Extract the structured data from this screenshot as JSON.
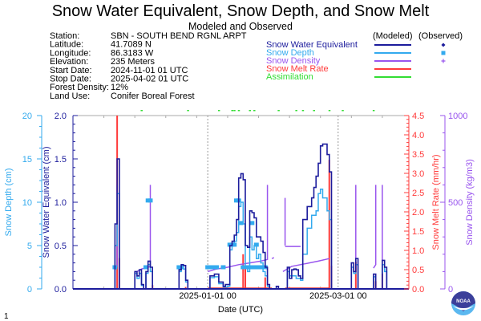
{
  "title": "Snow Water Equivalent, Snow Depth, and Snow Melt",
  "subtitle": "Modeled and Observed",
  "page_number": "1",
  "info": [
    {
      "label": "Station:",
      "value": "SBN - SOUTH BEND RGNL ARPT"
    },
    {
      "label": "Latitude:",
      "value": "41.7089 N"
    },
    {
      "label": "Longitude:",
      "value": "86.3183 W"
    },
    {
      "label": "Elevation:",
      "value": "235 Meters"
    },
    {
      "label": "Start Date:",
      "value": "2024-11-01 01 UTC"
    },
    {
      "label": "Stop Date:",
      "value": "2025-04-02 01 UTC"
    },
    {
      "label": "Forest Density:",
      "value": "12%"
    },
    {
      "label": "Land Use:",
      "value": "Conifer Boreal Forest"
    }
  ],
  "legend": {
    "modeled_header": "(Modeled)",
    "observed_header": "(Observed)",
    "items": [
      {
        "label": "Snow Water Equivalent",
        "color": "#1c1c9c",
        "observed_marker": "diamond"
      },
      {
        "label": "Snow Depth",
        "color": "#33aaee",
        "observed_marker": "square"
      },
      {
        "label": "Snow Density",
        "color": "#9955ee",
        "observed_marker": "plus"
      },
      {
        "label": "Snow Melt Rate",
        "color": "#ff3b3b",
        "observed_marker": ""
      },
      {
        "label": "Assimilation",
        "color": "#33dd33",
        "observed_marker": ""
      }
    ]
  },
  "logo": {
    "text": "NOAA"
  },
  "chart_data": {
    "type": "line",
    "xlabel": "Date (UTC)",
    "xlim": [
      "2024-11-01",
      "2025-04-02"
    ],
    "x_tick_labels": [
      {
        "date": "2025-01-01",
        "label": "2025-01-01 00"
      },
      {
        "date": "2025-03-01",
        "label": "2025-03-01 00"
      }
    ],
    "axes": {
      "snow_depth": {
        "label": "Snow Depth (cm)",
        "ylim": [
          0,
          20
        ],
        "ticks": [
          "0",
          "5",
          "10",
          "15",
          "20"
        ],
        "color": "#33aaee",
        "side": "left-outer"
      },
      "swe": {
        "label": "Snow Water Equivalent (cm)",
        "ylim": [
          0,
          2.0
        ],
        "ticks": [
          "0.0",
          "0.5",
          "1.0",
          "1.5",
          "2.0"
        ],
        "color": "#1c1c9c",
        "side": "left"
      },
      "melt": {
        "label": "Snow Melt Rate (mm/hr)",
        "ylim": [
          0,
          4.5
        ],
        "ticks": [
          "0.0",
          "0.5",
          "1.0",
          "1.5",
          "2.0",
          "2.5",
          "3.0",
          "3.5",
          "4.0",
          "4.5"
        ],
        "color": "#ff3b3b",
        "side": "right"
      },
      "density": {
        "label": "Snow Density (kg/m3)",
        "ylim": [
          0,
          1000
        ],
        "ticks": [
          "0",
          "500",
          "1000"
        ],
        "color": "#9955ee",
        "side": "right-outer"
      }
    },
    "series": {
      "swe_modeled": [
        [
          "2024-11-01",
          0
        ],
        [
          "2024-11-19",
          0
        ],
        [
          "2024-11-20",
          0.75
        ],
        [
          "2024-11-21",
          1.5
        ],
        [
          "2024-11-22",
          0
        ],
        [
          "2024-11-28",
          0
        ],
        [
          "2024-11-29",
          0.2
        ],
        [
          "2024-11-30",
          0.15
        ],
        [
          "2024-12-01",
          0.22
        ],
        [
          "2024-12-02",
          0.05
        ],
        [
          "2024-12-03",
          0
        ],
        [
          "2024-12-04",
          0.2
        ],
        [
          "2024-12-05",
          0.32
        ],
        [
          "2024-12-06",
          0.25
        ],
        [
          "2024-12-07",
          0
        ],
        [
          "2024-12-18",
          0
        ],
        [
          "2024-12-19",
          0.22
        ],
        [
          "2024-12-20",
          0.28
        ],
        [
          "2024-12-21",
          0.27
        ],
        [
          "2024-12-22",
          0.1
        ],
        [
          "2024-12-23",
          0
        ],
        [
          "2025-01-01",
          0
        ],
        [
          "2025-01-02",
          0.15
        ],
        [
          "2025-01-04",
          0.17
        ],
        [
          "2025-01-06",
          0.08
        ],
        [
          "2025-01-08",
          0.03
        ],
        [
          "2025-01-09",
          0.05
        ],
        [
          "2025-01-10",
          0.05
        ],
        [
          "2025-01-11",
          0.5
        ],
        [
          "2025-01-12",
          0.55
        ],
        [
          "2025-01-13",
          0.62
        ],
        [
          "2025-01-14",
          0.8
        ],
        [
          "2025-01-15",
          1.28
        ],
        [
          "2025-01-16",
          1.33
        ],
        [
          "2025-01-17",
          1.26
        ],
        [
          "2025-01-18",
          0.5
        ],
        [
          "2025-01-19",
          0.48
        ],
        [
          "2025-01-20",
          0.9
        ],
        [
          "2025-01-21",
          0.88
        ],
        [
          "2025-01-22",
          0.82
        ],
        [
          "2025-01-23",
          0.6
        ],
        [
          "2025-01-24",
          0.6
        ],
        [
          "2025-01-25",
          0.55
        ],
        [
          "2025-01-26",
          0.42
        ],
        [
          "2025-01-27",
          0.25
        ],
        [
          "2025-01-28",
          0.05
        ],
        [
          "2025-01-29",
          0
        ],
        [
          "2025-02-01",
          0.03
        ],
        [
          "2025-02-02",
          0
        ],
        [
          "2025-02-05",
          0
        ],
        [
          "2025-02-06",
          0.25
        ],
        [
          "2025-02-07",
          0.12
        ],
        [
          "2025-02-08",
          0.22
        ],
        [
          "2025-02-09",
          0.23
        ],
        [
          "2025-02-10",
          0.22
        ],
        [
          "2025-02-11",
          0.15
        ],
        [
          "2025-02-12",
          0.12
        ],
        [
          "2025-02-13",
          0.8
        ],
        [
          "2025-02-15",
          0.95
        ],
        [
          "2025-02-17",
          1.05
        ],
        [
          "2025-02-18",
          1.17
        ],
        [
          "2025-02-19",
          1.3
        ],
        [
          "2025-02-20",
          1.45
        ],
        [
          "2025-02-21",
          1.65
        ],
        [
          "2025-02-22",
          1.67
        ],
        [
          "2025-02-24",
          1.55
        ],
        [
          "2025-02-25",
          1.35
        ],
        [
          "2025-02-26",
          0
        ],
        [
          "2025-03-06",
          0
        ],
        [
          "2025-03-07",
          0.3
        ],
        [
          "2025-03-08",
          0.2
        ],
        [
          "2025-03-09",
          0.35
        ],
        [
          "2025-03-10",
          0
        ],
        [
          "2025-03-16",
          0
        ],
        [
          "2025-03-17",
          0.17
        ],
        [
          "2025-03-18",
          0
        ],
        [
          "2025-03-20",
          0
        ],
        [
          "2025-03-21",
          0.33
        ],
        [
          "2025-03-22",
          0.25
        ],
        [
          "2025-03-23",
          0
        ],
        [
          "2025-04-02",
          0
        ]
      ],
      "snow_depth_modeled": [
        [
          "2024-11-01",
          0
        ],
        [
          "2024-11-19",
          0
        ],
        [
          "2024-11-20",
          5
        ],
        [
          "2024-11-21",
          11
        ],
        [
          "2024-11-22",
          0
        ],
        [
          "2024-11-28",
          0
        ],
        [
          "2024-11-29",
          1.8
        ],
        [
          "2024-11-30",
          1.2
        ],
        [
          "2024-12-01",
          1.8
        ],
        [
          "2024-12-02",
          0.4
        ],
        [
          "2024-12-03",
          0
        ],
        [
          "2024-12-04",
          1.8
        ],
        [
          "2024-12-05",
          2.8
        ],
        [
          "2024-12-06",
          2
        ],
        [
          "2024-12-07",
          0
        ],
        [
          "2024-12-18",
          0
        ],
        [
          "2024-12-19",
          2
        ],
        [
          "2024-12-20",
          2.5
        ],
        [
          "2024-12-21",
          2.3
        ],
        [
          "2024-12-22",
          0.8
        ],
        [
          "2024-12-23",
          0
        ],
        [
          "2025-01-01",
          0
        ],
        [
          "2025-01-02",
          1.3
        ],
        [
          "2025-01-04",
          1.4
        ],
        [
          "2025-01-06",
          0.6
        ],
        [
          "2025-01-08",
          0.2
        ],
        [
          "2025-01-10",
          0.3
        ],
        [
          "2025-01-11",
          4.5
        ],
        [
          "2025-01-12",
          5
        ],
        [
          "2025-01-13",
          5.5
        ],
        [
          "2025-01-14",
          6.5
        ],
        [
          "2025-01-15",
          9.5
        ],
        [
          "2025-01-16",
          10
        ],
        [
          "2025-01-17",
          7.5
        ],
        [
          "2025-01-18",
          2.5
        ],
        [
          "2025-01-19",
          2
        ],
        [
          "2025-01-20",
          6
        ],
        [
          "2025-01-21",
          4.5
        ],
        [
          "2025-01-22",
          5
        ],
        [
          "2025-01-23",
          3.5
        ],
        [
          "2025-01-24",
          4
        ],
        [
          "2025-01-25",
          3
        ],
        [
          "2025-01-26",
          2
        ],
        [
          "2025-01-27",
          1.5
        ],
        [
          "2025-01-28",
          0.3
        ],
        [
          "2025-01-29",
          0
        ],
        [
          "2025-02-05",
          0
        ],
        [
          "2025-02-06",
          2
        ],
        [
          "2025-02-07",
          1.5
        ],
        [
          "2025-02-10",
          1.2
        ],
        [
          "2025-02-12",
          1
        ],
        [
          "2025-02-13",
          4
        ],
        [
          "2025-02-15",
          7
        ],
        [
          "2025-02-17",
          8.5
        ],
        [
          "2025-02-19",
          9
        ],
        [
          "2025-02-20",
          11
        ],
        [
          "2025-02-21",
          11.5
        ],
        [
          "2025-02-22",
          10.5
        ],
        [
          "2025-02-24",
          9
        ],
        [
          "2025-02-25",
          8
        ],
        [
          "2025-02-26",
          0
        ],
        [
          "2025-03-06",
          0
        ],
        [
          "2025-03-07",
          2.5
        ],
        [
          "2025-03-08",
          1.8
        ],
        [
          "2025-03-09",
          2.8
        ],
        [
          "2025-03-10",
          0
        ],
        [
          "2025-03-16",
          0
        ],
        [
          "2025-03-17",
          1.4
        ],
        [
          "2025-03-18",
          0
        ],
        [
          "2025-03-20",
          0
        ],
        [
          "2025-03-21",
          2.8
        ],
        [
          "2025-03-22",
          2
        ],
        [
          "2025-03-23",
          0
        ],
        [
          "2025-04-02",
          0
        ]
      ],
      "snow_depth_observed": [
        [
          "2024-11-20",
          2.5
        ],
        [
          "2024-12-04",
          2.5
        ],
        [
          "2024-12-05",
          10.2
        ],
        [
          "2024-12-06",
          10.2
        ],
        [
          "2024-12-19",
          2.5
        ],
        [
          "2024-12-20",
          2.5
        ],
        [
          "2025-01-01",
          2.5
        ],
        [
          "2025-01-03",
          2.5
        ],
        [
          "2025-01-05",
          2.5
        ],
        [
          "2025-01-08",
          2.5
        ],
        [
          "2025-01-11",
          5.1
        ],
        [
          "2025-01-12",
          5.1
        ],
        [
          "2025-01-13",
          5.1
        ],
        [
          "2025-01-14",
          10.2
        ],
        [
          "2025-01-15",
          10.2
        ],
        [
          "2025-01-16",
          7.6
        ],
        [
          "2025-01-17",
          2.5
        ],
        [
          "2025-01-18",
          2.5
        ],
        [
          "2025-01-19",
          2.5
        ],
        [
          "2025-01-20",
          2.5
        ],
        [
          "2025-01-21",
          7.6
        ],
        [
          "2025-01-22",
          2.5
        ],
        [
          "2025-01-23",
          5.1
        ],
        [
          "2025-01-24",
          2.5
        ],
        [
          "2025-01-25",
          2.5
        ],
        [
          "2025-01-27",
          2.5
        ]
      ],
      "density_modeled_segments": [
        [
          [
            "2024-11-20",
            110
          ],
          [
            "2024-11-21",
            130
          ],
          [
            "2024-11-21",
            600
          ]
        ],
        [
          [
            "2024-11-30",
            100
          ],
          [
            "2024-12-02",
            115
          ],
          [
            "2024-12-05",
            125
          ],
          [
            "2024-12-06",
            130
          ],
          [
            "2024-12-06",
            600
          ]
        ],
        [
          [
            "2025-01-01",
            100
          ],
          [
            "2025-01-05",
            115
          ],
          [
            "2025-01-10",
            125
          ],
          [
            "2025-01-15",
            140
          ],
          [
            "2025-01-20",
            150
          ],
          [
            "2025-01-25",
            160
          ],
          [
            "2025-01-28",
            170
          ],
          [
            "2025-01-28",
            600
          ]
        ],
        [
          [
            "2025-01-30",
            175
          ],
          [
            "2025-01-31",
            180
          ]
        ],
        [
          [
            "2025-02-05",
            250
          ],
          [
            "2025-02-05",
            525
          ]
        ],
        [
          [
            "2025-02-05",
            245
          ],
          [
            "2025-02-12",
            245
          ]
        ],
        [
          [
            "2025-02-04",
            100
          ],
          [
            "2025-02-08",
            130
          ],
          [
            "2025-02-14",
            145
          ],
          [
            "2025-02-20",
            160
          ],
          [
            "2025-02-25",
            175
          ]
        ],
        [
          [
            "2025-03-09",
            120
          ],
          [
            "2025-03-09",
            600
          ]
        ],
        [
          [
            "2025-03-17",
            120
          ],
          [
            "2025-03-18",
            140
          ],
          [
            "2025-03-18",
            600
          ]
        ],
        [
          [
            "2025-03-21",
            160
          ],
          [
            "2025-03-21",
            600
          ]
        ]
      ],
      "melt_rate": [
        [
          "2024-11-21",
          4.5
        ],
        [
          "2024-11-22",
          0.8
        ],
        [
          "2024-12-07",
          0.1
        ],
        [
          "2024-12-22",
          0.05
        ],
        [
          "2025-01-17",
          0.9
        ],
        [
          "2025-01-18",
          0.6
        ],
        [
          "2025-01-27",
          0.3
        ],
        [
          "2025-02-25",
          3.35
        ],
        [
          "2025-02-26",
          0.6
        ],
        [
          "2025-03-09",
          0.7
        ],
        [
          "2025-03-18",
          0.2
        ],
        [
          "2025-03-21",
          0.4
        ]
      ],
      "melt_baseline": [
        [
          "2025-01-01",
          "2025-01-30",
          0.02
        ],
        [
          "2025-02-05",
          "2025-02-25",
          0.02
        ]
      ],
      "assimilation": [
        "2024-12-02",
        "2024-12-23",
        "2025-01-06",
        "2025-01-12",
        "2025-01-13",
        "2025-01-15",
        "2025-01-20",
        "2025-01-22",
        "2025-02-02",
        "2025-02-10",
        "2025-02-13",
        "2025-02-18",
        "2025-02-25",
        "2025-03-03",
        "2025-03-17"
      ]
    },
    "grid": "dotted vertical lines at labeled dates",
    "legend_position": "top-right"
  }
}
